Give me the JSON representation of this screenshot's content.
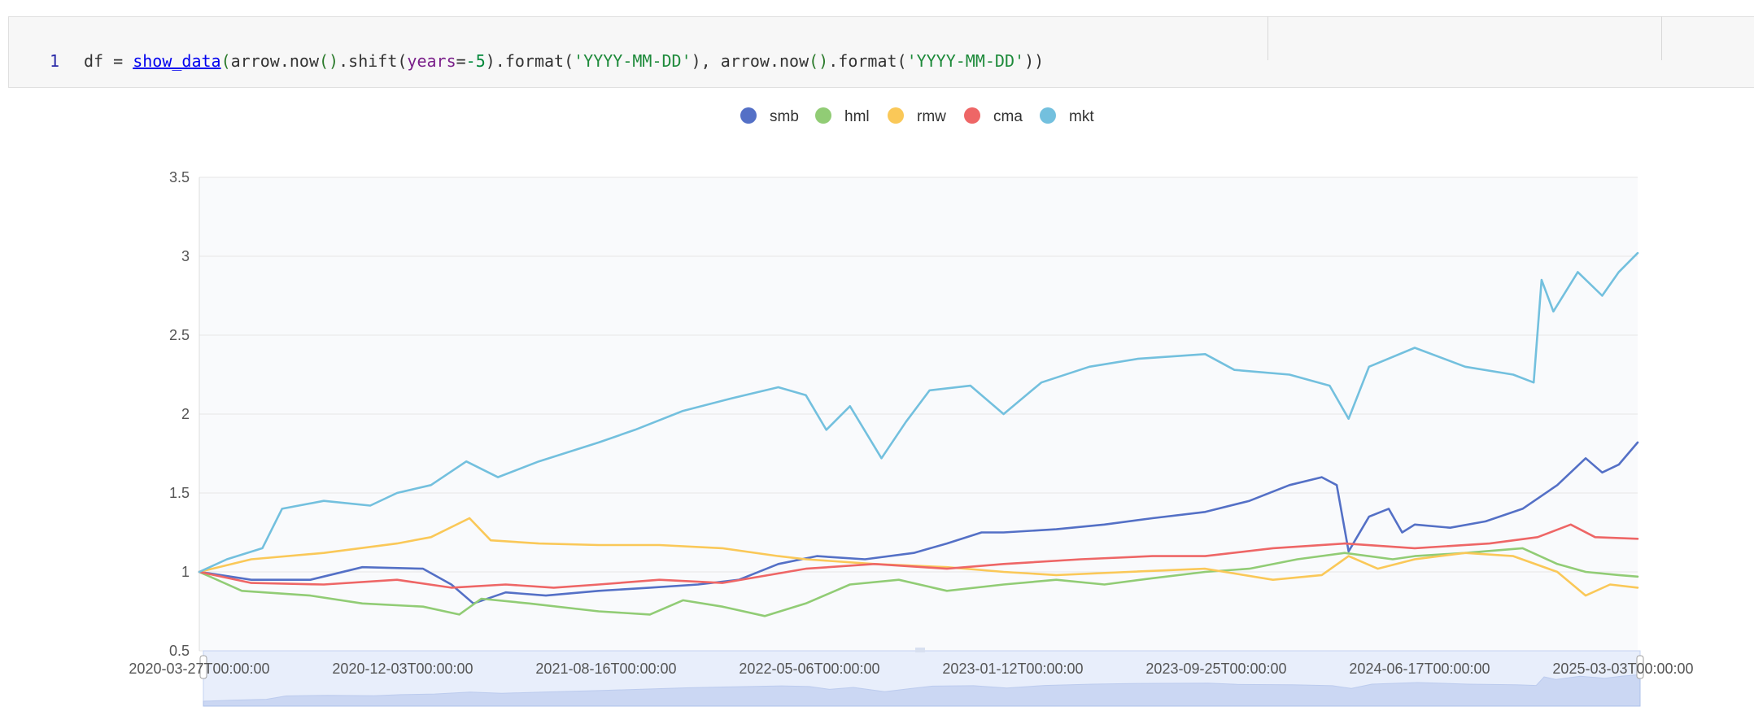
{
  "code": {
    "line_number": "1",
    "tokens": [
      {
        "text": "df",
        "cls": ""
      },
      {
        "text": " = ",
        "cls": ""
      },
      {
        "text": "show_data",
        "cls": "tok-fn"
      },
      {
        "text": "(",
        "cls": "tok-paren"
      },
      {
        "text": "arrow.now",
        "cls": ""
      },
      {
        "text": "()",
        "cls": "tok-paren"
      },
      {
        "text": ".shift(",
        "cls": ""
      },
      {
        "text": "years",
        "cls": "tok-kw"
      },
      {
        "text": "=",
        "cls": ""
      },
      {
        "text": "-5",
        "cls": "tok-num"
      },
      {
        "text": ").format(",
        "cls": ""
      },
      {
        "text": "'YYYY-MM-DD'",
        "cls": "tok-str"
      },
      {
        "text": "), ",
        "cls": ""
      },
      {
        "text": "arrow.now",
        "cls": ""
      },
      {
        "text": "()",
        "cls": "tok-paren"
      },
      {
        "text": ".format(",
        "cls": ""
      },
      {
        "text": "'YYYY-MM-DD'",
        "cls": "tok-str"
      },
      {
        "text": "))",
        "cls": ""
      }
    ]
  },
  "chart_data": {
    "type": "line",
    "legend_position": "top-center",
    "grid": true,
    "ylim": [
      0.5,
      3.5
    ],
    "y_ticks": [
      "0.5",
      "1",
      "1.5",
      "2",
      "2.5",
      "3",
      "3.5"
    ],
    "x_tick_labels": [
      "2020-03-27T00:00:00",
      "2020-12-03T00:00:00",
      "2021-08-16T00:00:00",
      "2022-05-06T00:00:00",
      "2023-01-12T00:00:00",
      "2023-09-25T00:00:00",
      "2024-06-17T00:00:00",
      "2025-03-03T00:00:00"
    ],
    "x_range": [
      "2020-03-27",
      "2025-03-27"
    ],
    "series": [
      {
        "name": "smb",
        "color": "#5470c6",
        "points": [
          [
            "2020-03-27",
            1.0
          ],
          [
            "2020-06-01",
            0.95
          ],
          [
            "2020-08-15",
            0.95
          ],
          [
            "2020-10-20",
            1.03
          ],
          [
            "2021-01-05",
            1.02
          ],
          [
            "2021-02-10",
            0.92
          ],
          [
            "2021-03-10",
            0.8
          ],
          [
            "2021-04-20",
            0.87
          ],
          [
            "2021-06-10",
            0.85
          ],
          [
            "2021-08-16",
            0.88
          ],
          [
            "2021-10-20",
            0.9
          ],
          [
            "2021-12-20",
            0.92
          ],
          [
            "2022-02-10",
            0.95
          ],
          [
            "2022-04-01",
            1.05
          ],
          [
            "2022-05-20",
            1.1
          ],
          [
            "2022-07-20",
            1.08
          ],
          [
            "2022-09-20",
            1.12
          ],
          [
            "2022-11-01",
            1.18
          ],
          [
            "2022-12-15",
            1.25
          ],
          [
            "2023-01-12",
            1.25
          ],
          [
            "2023-03-20",
            1.27
          ],
          [
            "2023-05-20",
            1.3
          ],
          [
            "2023-07-20",
            1.34
          ],
          [
            "2023-09-25",
            1.38
          ],
          [
            "2023-11-20",
            1.45
          ],
          [
            "2024-01-10",
            1.55
          ],
          [
            "2024-02-20",
            1.6
          ],
          [
            "2024-03-10",
            1.55
          ],
          [
            "2024-03-25",
            1.13
          ],
          [
            "2024-04-20",
            1.35
          ],
          [
            "2024-05-15",
            1.4
          ],
          [
            "2024-06-01",
            1.25
          ],
          [
            "2024-06-17",
            1.3
          ],
          [
            "2024-08-01",
            1.28
          ],
          [
            "2024-09-15",
            1.32
          ],
          [
            "2024-11-01",
            1.4
          ],
          [
            "2024-12-15",
            1.55
          ],
          [
            "2025-01-20",
            1.72
          ],
          [
            "2025-02-10",
            1.63
          ],
          [
            "2025-03-03",
            1.68
          ],
          [
            "2025-03-27",
            1.82
          ]
        ]
      },
      {
        "name": "hml",
        "color": "#91cc75",
        "points": [
          [
            "2020-03-27",
            1.0
          ],
          [
            "2020-05-20",
            0.88
          ],
          [
            "2020-08-15",
            0.85
          ],
          [
            "2020-10-20",
            0.8
          ],
          [
            "2021-01-05",
            0.78
          ],
          [
            "2021-02-20",
            0.73
          ],
          [
            "2021-03-20",
            0.83
          ],
          [
            "2021-05-20",
            0.8
          ],
          [
            "2021-08-16",
            0.75
          ],
          [
            "2021-10-20",
            0.73
          ],
          [
            "2021-12-01",
            0.82
          ],
          [
            "2022-01-20",
            0.78
          ],
          [
            "2022-03-15",
            0.72
          ],
          [
            "2022-05-06",
            0.8
          ],
          [
            "2022-07-01",
            0.92
          ],
          [
            "2022-09-01",
            0.95
          ],
          [
            "2022-11-01",
            0.88
          ],
          [
            "2023-01-12",
            0.92
          ],
          [
            "2023-03-20",
            0.95
          ],
          [
            "2023-05-20",
            0.92
          ],
          [
            "2023-07-20",
            0.96
          ],
          [
            "2023-09-25",
            1.0
          ],
          [
            "2023-11-20",
            1.02
          ],
          [
            "2024-01-20",
            1.08
          ],
          [
            "2024-03-20",
            1.12
          ],
          [
            "2024-05-20",
            1.08
          ],
          [
            "2024-06-17",
            1.1
          ],
          [
            "2024-08-20",
            1.12
          ],
          [
            "2024-11-01",
            1.15
          ],
          [
            "2024-12-15",
            1.05
          ],
          [
            "2025-01-20",
            1.0
          ],
          [
            "2025-03-03",
            0.98
          ],
          [
            "2025-03-27",
            0.97
          ]
        ]
      },
      {
        "name": "rmw",
        "color": "#fac858",
        "points": [
          [
            "2020-03-27",
            1.0
          ],
          [
            "2020-06-01",
            1.08
          ],
          [
            "2020-09-01",
            1.12
          ],
          [
            "2020-12-03",
            1.18
          ],
          [
            "2021-01-15",
            1.22
          ],
          [
            "2021-03-05",
            1.34
          ],
          [
            "2021-04-01",
            1.2
          ],
          [
            "2021-06-01",
            1.18
          ],
          [
            "2021-08-16",
            1.17
          ],
          [
            "2021-11-01",
            1.17
          ],
          [
            "2022-01-20",
            1.15
          ],
          [
            "2022-04-01",
            1.1
          ],
          [
            "2022-05-06",
            1.08
          ],
          [
            "2022-08-01",
            1.05
          ],
          [
            "2022-11-01",
            1.03
          ],
          [
            "2023-01-12",
            1.0
          ],
          [
            "2023-03-20",
            0.98
          ],
          [
            "2023-06-20",
            1.0
          ],
          [
            "2023-09-25",
            1.02
          ],
          [
            "2023-12-20",
            0.95
          ],
          [
            "2024-02-20",
            0.98
          ],
          [
            "2024-03-25",
            1.1
          ],
          [
            "2024-05-01",
            1.02
          ],
          [
            "2024-06-17",
            1.08
          ],
          [
            "2024-08-20",
            1.12
          ],
          [
            "2024-10-20",
            1.1
          ],
          [
            "2024-12-15",
            1.0
          ],
          [
            "2025-01-20",
            0.85
          ],
          [
            "2025-02-20",
            0.92
          ],
          [
            "2025-03-27",
            0.9
          ]
        ]
      },
      {
        "name": "cma",
        "color": "#ee6666",
        "points": [
          [
            "2020-03-27",
            1.0
          ],
          [
            "2020-06-01",
            0.93
          ],
          [
            "2020-09-01",
            0.92
          ],
          [
            "2020-12-03",
            0.95
          ],
          [
            "2021-02-10",
            0.9
          ],
          [
            "2021-04-20",
            0.92
          ],
          [
            "2021-06-20",
            0.9
          ],
          [
            "2021-08-16",
            0.92
          ],
          [
            "2021-11-01",
            0.95
          ],
          [
            "2022-01-20",
            0.93
          ],
          [
            "2022-05-06",
            1.02
          ],
          [
            "2022-08-01",
            1.05
          ],
          [
            "2022-11-01",
            1.02
          ],
          [
            "2023-01-12",
            1.05
          ],
          [
            "2023-04-20",
            1.08
          ],
          [
            "2023-07-20",
            1.1
          ],
          [
            "2023-09-25",
            1.1
          ],
          [
            "2023-12-20",
            1.15
          ],
          [
            "2024-03-20",
            1.18
          ],
          [
            "2024-06-17",
            1.15
          ],
          [
            "2024-09-20",
            1.18
          ],
          [
            "2024-11-20",
            1.22
          ],
          [
            "2025-01-01",
            1.3
          ],
          [
            "2025-02-01",
            1.22
          ],
          [
            "2025-03-27",
            1.21
          ]
        ]
      },
      {
        "name": "mkt",
        "color": "#73c0de",
        "points": [
          [
            "2020-03-27",
            1.0
          ],
          [
            "2020-05-01",
            1.08
          ],
          [
            "2020-06-15",
            1.15
          ],
          [
            "2020-07-10",
            1.4
          ],
          [
            "2020-09-01",
            1.45
          ],
          [
            "2020-10-30",
            1.42
          ],
          [
            "2020-12-03",
            1.5
          ],
          [
            "2021-01-15",
            1.55
          ],
          [
            "2021-03-01",
            1.7
          ],
          [
            "2021-04-10",
            1.6
          ],
          [
            "2021-06-01",
            1.7
          ],
          [
            "2021-08-16",
            1.82
          ],
          [
            "2021-10-01",
            1.9
          ],
          [
            "2021-12-01",
            2.02
          ],
          [
            "2022-02-01",
            2.1
          ],
          [
            "2022-04-01",
            2.17
          ],
          [
            "2022-05-06",
            2.12
          ],
          [
            "2022-06-01",
            1.9
          ],
          [
            "2022-07-01",
            2.05
          ],
          [
            "2022-08-10",
            1.72
          ],
          [
            "2022-09-10",
            1.95
          ],
          [
            "2022-10-10",
            2.15
          ],
          [
            "2022-12-01",
            2.18
          ],
          [
            "2023-01-12",
            2.0
          ],
          [
            "2023-03-01",
            2.2
          ],
          [
            "2023-05-01",
            2.3
          ],
          [
            "2023-07-01",
            2.35
          ],
          [
            "2023-09-25",
            2.38
          ],
          [
            "2023-11-01",
            2.28
          ],
          [
            "2024-01-10",
            2.25
          ],
          [
            "2024-03-01",
            2.18
          ],
          [
            "2024-03-25",
            1.97
          ],
          [
            "2024-04-20",
            2.3
          ],
          [
            "2024-06-17",
            2.42
          ],
          [
            "2024-08-20",
            2.3
          ],
          [
            "2024-10-20",
            2.25
          ],
          [
            "2024-11-15",
            2.2
          ],
          [
            "2024-11-25",
            2.85
          ],
          [
            "2024-12-10",
            2.65
          ],
          [
            "2025-01-10",
            2.9
          ],
          [
            "2025-02-10",
            2.75
          ],
          [
            "2025-03-03",
            2.9
          ],
          [
            "2025-03-27",
            3.02
          ]
        ]
      }
    ]
  }
}
